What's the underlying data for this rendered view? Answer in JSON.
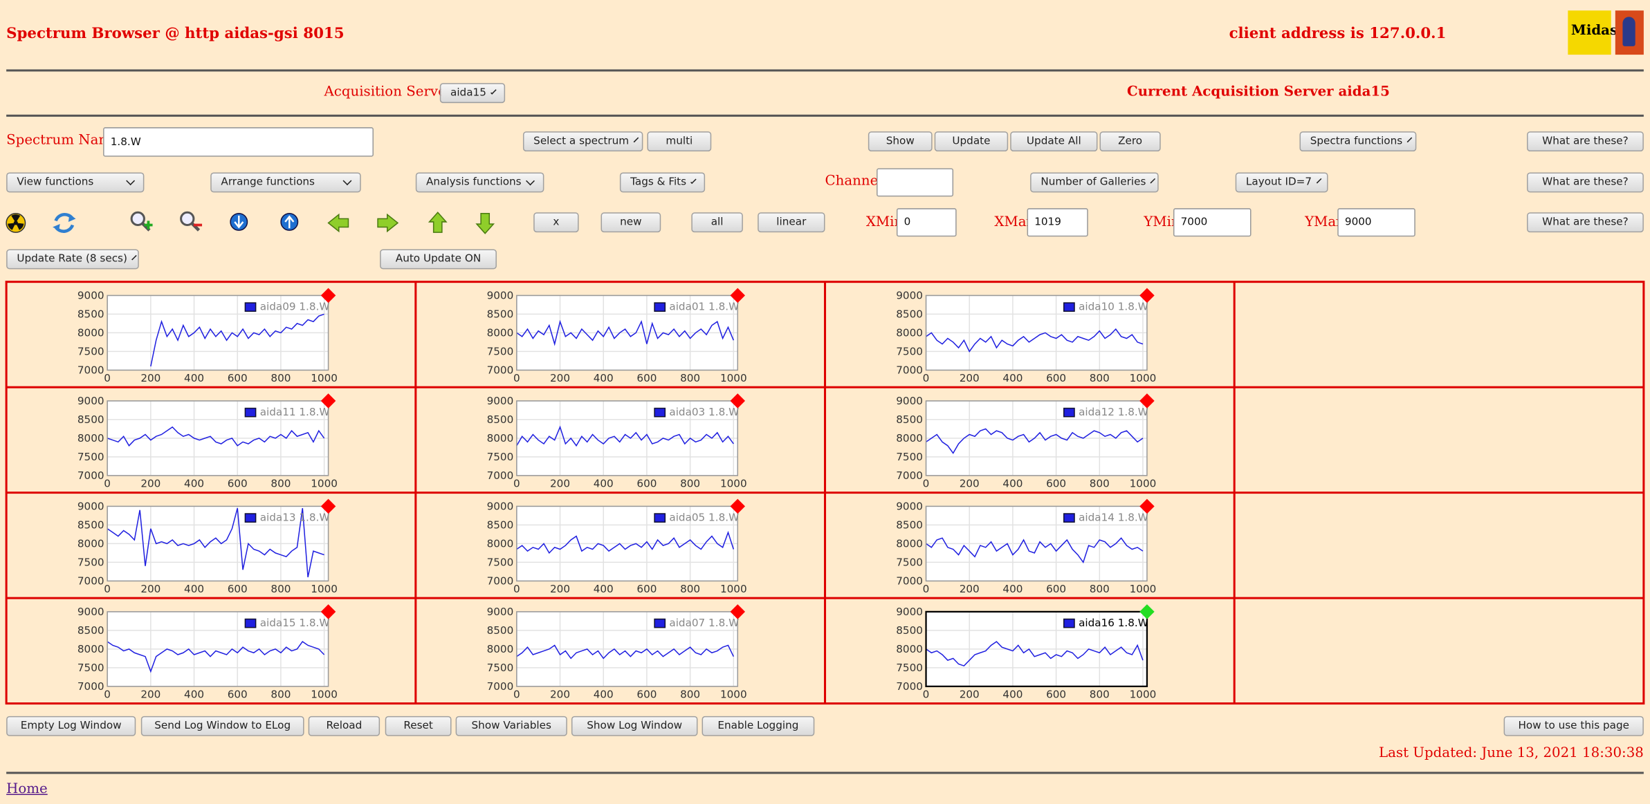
{
  "header": {
    "title": "Spectrum Browser @ http aidas-gsi 8015",
    "client_address": "client address is 127.0.0.1",
    "logo_text": "Midas"
  },
  "servers": {
    "label": "Acquisition Servers",
    "selected": "aida15",
    "current": "Current Acquisition Server aida15"
  },
  "row1": {
    "name_label": "Spectrum Name:",
    "name_value": "1.8.W",
    "select": "Select a spectrum",
    "multi": "multi",
    "show": "Show",
    "update": "Update",
    "update_all": "Update All",
    "zero": "Zero",
    "spectra_functions": "Spectra functions",
    "help": "What are these?"
  },
  "row2": {
    "view": "View functions",
    "arrange": "Arrange functions",
    "analysis": "Analysis functions",
    "tags": "Tags & Fits",
    "channel_label": "Channel:",
    "galleries": "Number of Galleries",
    "layout": "Layout ID=7",
    "help": "What are these?"
  },
  "row3": {
    "x": "x",
    "new": "new",
    "all": "all",
    "linear": "linear",
    "xmin_label": "XMin",
    "xmin": 0,
    "xmax_label": "XMax",
    "xmax": 1019,
    "ymin_label": "YMin",
    "ymin": 7000,
    "ymax_label": "YMax",
    "ymax": 9000,
    "help": "What are these?"
  },
  "row4": {
    "rate": "Update Rate (8 secs)",
    "auto": "Auto Update ON"
  },
  "spectra": {
    "type": "line",
    "color": "#2020e0",
    "xlim": [
      0,
      1019
    ],
    "ylim": [
      7000,
      9000
    ],
    "xticks": [
      0,
      200,
      400,
      600,
      800,
      1000
    ],
    "yticks": [
      7000,
      7500,
      8000,
      8500,
      9000
    ],
    "grid": true,
    "x": [
      0,
      25,
      50,
      75,
      100,
      125,
      150,
      175,
      200,
      225,
      250,
      275,
      300,
      325,
      350,
      375,
      400,
      425,
      450,
      475,
      500,
      525,
      550,
      575,
      600,
      625,
      650,
      675,
      700,
      725,
      750,
      775,
      800,
      825,
      850,
      875,
      900,
      925,
      950,
      975,
      1000
    ],
    "plots": [
      {
        "name": "aida09 1.8.W",
        "active": false,
        "values": [
          null,
          null,
          null,
          null,
          null,
          null,
          null,
          null,
          7100,
          7800,
          8300,
          7900,
          8100,
          7800,
          8200,
          7900,
          8000,
          8150,
          7850,
          8100,
          7900,
          8050,
          7800,
          8000,
          7900,
          8100,
          7850,
          8000,
          7950,
          8100,
          7900,
          8050,
          8000,
          8150,
          8100,
          8250,
          8200,
          8350,
          8300,
          8450,
          8500
        ]
      },
      {
        "name": "aida01 1.8.W",
        "active": false,
        "values": [
          8000,
          7900,
          8100,
          7850,
          8050,
          7950,
          8200,
          7700,
          8300,
          7900,
          8000,
          7850,
          8100,
          7950,
          7800,
          8050,
          7900,
          8150,
          7850,
          8000,
          8100,
          7900,
          8000,
          8300,
          7700,
          8250,
          7850,
          8000,
          7950,
          8100,
          7900,
          8050,
          7850,
          8000,
          8100,
          7950,
          8200,
          8300,
          7850,
          8150,
          7800
        ]
      },
      {
        "name": "aida10 1.8.W",
        "active": false,
        "values": [
          7900,
          8000,
          7800,
          7700,
          7850,
          7750,
          7600,
          7800,
          7500,
          7700,
          7850,
          7750,
          7900,
          7600,
          7800,
          7700,
          7650,
          7800,
          7900,
          7750,
          7850,
          7950,
          8000,
          7900,
          7850,
          7950,
          7800,
          7750,
          7900,
          7850,
          7800,
          7900,
          8050,
          7850,
          7950,
          8100,
          7900,
          7850,
          7950,
          7750,
          7700
        ]
      },
      {
        "name": "aida11 1.8.W",
        "active": false,
        "values": [
          8000,
          7950,
          7900,
          8050,
          7800,
          7950,
          8000,
          8100,
          7950,
          8050,
          8100,
          8200,
          8300,
          8150,
          8050,
          8100,
          8000,
          7950,
          8000,
          8050,
          7900,
          7850,
          7950,
          8000,
          7800,
          7900,
          7850,
          7950,
          8000,
          7900,
          8050,
          8000,
          8100,
          8000,
          8200,
          8050,
          8100,
          8150,
          7900,
          8200,
          8000
        ]
      },
      {
        "name": "aida03 1.8.W",
        "active": false,
        "values": [
          7800,
          8050,
          7900,
          8100,
          7950,
          7850,
          8050,
          7950,
          8300,
          7850,
          8000,
          7800,
          8050,
          7900,
          8100,
          7950,
          7850,
          8000,
          8050,
          7900,
          8100,
          8000,
          8150,
          7950,
          8100,
          7850,
          7900,
          8000,
          7950,
          8050,
          8100,
          7850,
          8000,
          7900,
          7950,
          8100,
          8000,
          8150,
          7900,
          8050,
          7850
        ]
      },
      {
        "name": "aida12 1.8.W",
        "active": false,
        "values": [
          7900,
          8000,
          8100,
          7900,
          7800,
          7600,
          7850,
          8000,
          8100,
          8050,
          8200,
          8250,
          8100,
          8200,
          8150,
          8000,
          7950,
          8050,
          8100,
          7900,
          8000,
          8150,
          7950,
          8050,
          8100,
          8000,
          7950,
          8150,
          8050,
          8000,
          8100,
          8200,
          8150,
          8050,
          8100,
          8000,
          8150,
          8200,
          8050,
          7900,
          8000
        ]
      },
      {
        "name": "aida13 1.8.W",
        "active": false,
        "values": [
          8400,
          8300,
          8200,
          8350,
          8250,
          8100,
          8900,
          7400,
          8400,
          8000,
          8050,
          8000,
          8100,
          7950,
          8000,
          7950,
          8000,
          8100,
          7900,
          8050,
          8150,
          8000,
          8100,
          8400,
          8950,
          7300,
          8000,
          7850,
          7800,
          7700,
          7850,
          7750,
          7700,
          7650,
          7800,
          7900,
          8950,
          7100,
          7800,
          7750,
          7700
        ]
      },
      {
        "name": "aida05 1.8.W",
        "active": false,
        "values": [
          7850,
          7950,
          7800,
          7900,
          7850,
          8000,
          7750,
          7900,
          7850,
          7950,
          8100,
          8200,
          7800,
          7900,
          7850,
          8000,
          7950,
          7800,
          7900,
          8000,
          7850,
          7950,
          8000,
          7900,
          8050,
          7850,
          8100,
          7950,
          8000,
          8150,
          7900,
          8000,
          8100,
          7950,
          7850,
          8050,
          8200,
          8000,
          7900,
          8300,
          7850
        ]
      },
      {
        "name": "aida14 1.8.W",
        "active": false,
        "values": [
          8000,
          7900,
          8100,
          8150,
          7900,
          7850,
          7700,
          7950,
          7800,
          7650,
          7950,
          7900,
          8050,
          7800,
          7900,
          8000,
          7700,
          7850,
          8100,
          7800,
          7750,
          8050,
          7900,
          8000,
          7800,
          7950,
          8100,
          7850,
          7700,
          7500,
          7950,
          7900,
          8100,
          8050,
          7900,
          8000,
          8150,
          7950,
          7850,
          7900,
          7800
        ]
      },
      {
        "name": "aida15 1.8.W",
        "active": false,
        "values": [
          8200,
          8100,
          8050,
          7950,
          8000,
          7900,
          7850,
          7800,
          7400,
          7800,
          7900,
          8000,
          7950,
          7850,
          7900,
          8000,
          7850,
          7900,
          7950,
          7800,
          7950,
          7900,
          7850,
          8000,
          7900,
          8050,
          7950,
          7900,
          8000,
          7850,
          7950,
          8000,
          7900,
          8050,
          7950,
          8000,
          8200,
          8100,
          8050,
          8000,
          7850
        ]
      },
      {
        "name": "aida07 1.8.W",
        "active": false,
        "values": [
          7800,
          7900,
          8050,
          7850,
          7900,
          7950,
          8000,
          8100,
          7850,
          7950,
          7750,
          7900,
          7950,
          8000,
          7850,
          7950,
          7750,
          7900,
          8000,
          7850,
          7950,
          7800,
          7950,
          7900,
          8000,
          7850,
          7950,
          7800,
          7900,
          8000,
          7850,
          7950,
          8050,
          7900,
          7850,
          8000,
          7900,
          7950,
          8050,
          8100,
          7800
        ]
      },
      {
        "name": "aida16 1.8.W",
        "active": true,
        "values": [
          8000,
          7900,
          7950,
          7850,
          7700,
          7750,
          7600,
          7550,
          7700,
          7850,
          7900,
          7950,
          8100,
          8200,
          8050,
          8000,
          7950,
          8100,
          7900,
          8000,
          7800,
          7850,
          7900,
          7750,
          7850,
          7800,
          7950,
          7900,
          7750,
          7850,
          8000,
          7950,
          7900,
          8050,
          7850,
          7950,
          8050,
          7900,
          7850,
          8100,
          7700
        ]
      }
    ]
  },
  "footer": {
    "buttons": [
      "Empty Log Window",
      "Send Log Window to ELog",
      "Reload",
      "Reset",
      "Show Variables",
      "Show Log Window",
      "Enable Logging"
    ],
    "how": "How to use this page",
    "last_updated": "Last Updated: June 13, 2021 18:30:38",
    "home": "Home"
  }
}
